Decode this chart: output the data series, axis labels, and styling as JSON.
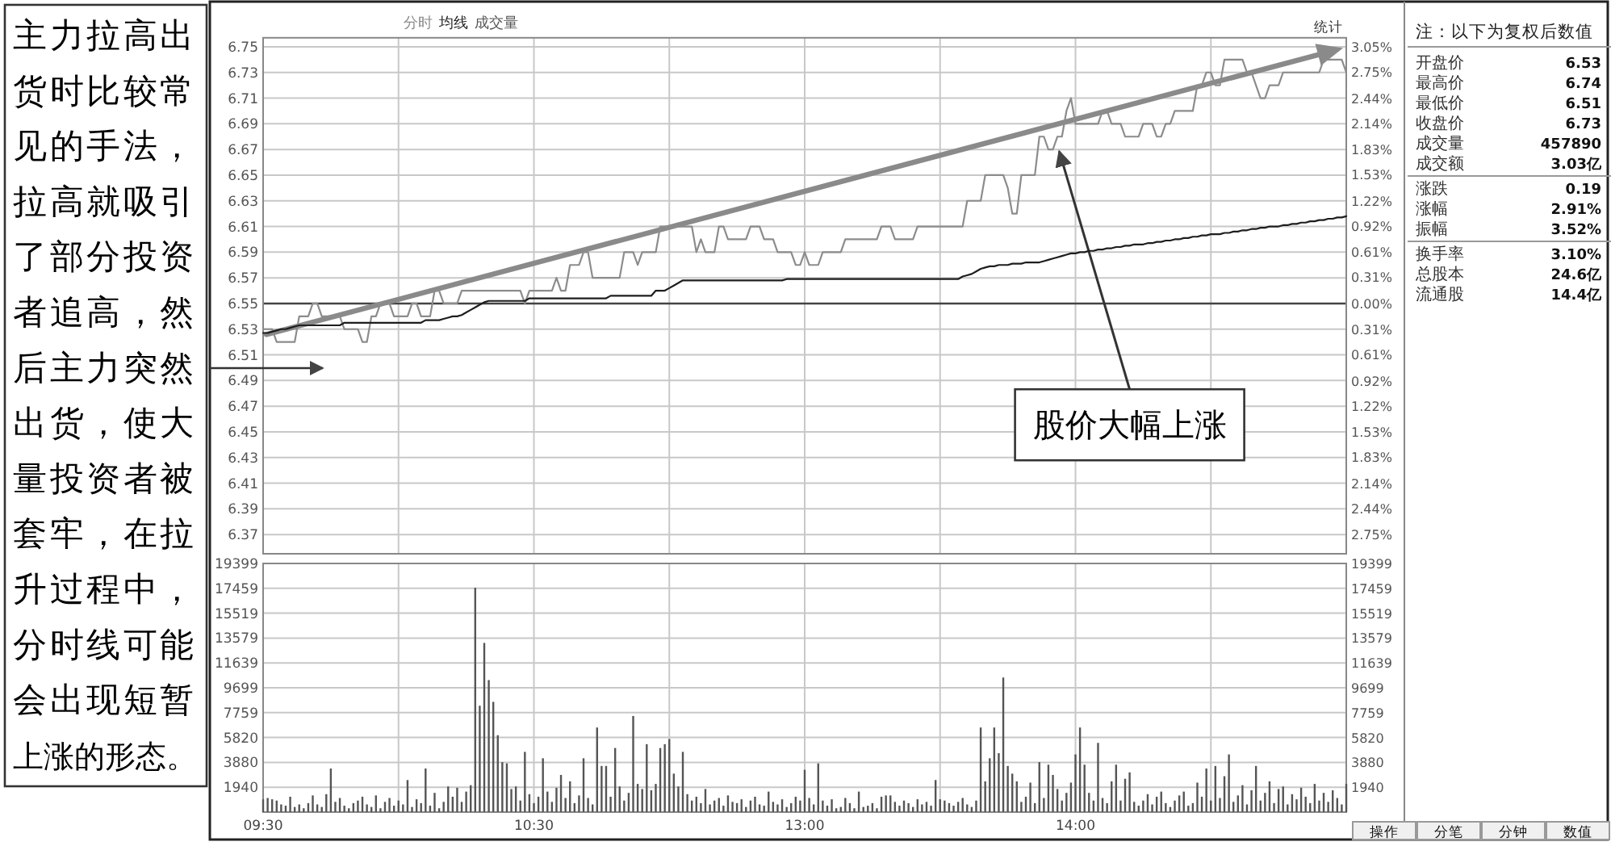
{
  "chart_data": [
    {
      "type": "line",
      "legend": "top left",
      "grid": true,
      "tick_labels": "y",
      "annotations": [
        "主力拉高出货时比较常见的手法，拉高就吸引了部分投资者追高，然后主力突然出货，使大量投资者被套牢，在拉升过程中，分时线可能会出现短暂上涨的形态。",
        "股价大幅上涨",
        "统计"
      ],
      "categories": [
        null,
        null,
        null,
        null,
        null,
        null,
        null,
        null,
        null,
        null,
        null,
        null,
        null,
        null,
        null,
        null,
        null,
        null,
        null,
        null,
        null,
        null,
        null,
        null,
        null,
        null,
        null,
        null,
        null,
        null,
        null,
        null,
        null,
        null,
        null,
        null,
        null,
        null,
        null,
        null,
        null,
        null,
        null,
        null,
        null,
        null,
        null,
        null,
        null,
        null,
        null,
        null,
        null,
        null,
        null,
        null,
        null,
        null,
        null,
        null,
        null,
        null,
        null,
        null,
        null,
        null,
        null,
        null,
        null,
        null,
        null,
        null,
        null,
        null,
        null,
        null,
        null,
        null,
        null,
        null,
        null,
        null,
        null,
        null,
        null,
        null,
        null,
        null,
        null,
        null,
        null,
        null,
        null,
        null,
        null,
        null,
        null,
        null,
        null,
        null,
        null,
        null,
        null,
        null,
        null,
        null,
        null,
        null,
        null,
        null,
        null,
        null,
        null,
        null,
        null,
        null,
        null,
        null,
        null,
        null,
        null,
        null,
        null,
        null,
        null,
        null,
        null,
        null,
        null,
        null,
        null,
        null,
        null,
        null,
        null,
        null,
        null,
        null,
        null,
        null,
        null,
        null,
        null,
        null,
        null,
        null,
        null,
        null,
        null,
        null,
        null,
        null,
        null,
        null,
        null,
        null,
        null,
        null,
        null,
        null,
        null,
        null,
        null,
        null,
        null,
        null,
        null,
        null,
        null,
        null,
        null,
        null,
        null,
        null,
        null,
        null,
        null,
        null,
        null,
        null,
        null,
        null,
        null,
        null,
        null,
        null,
        null,
        null,
        null,
        null,
        null,
        null,
        null,
        null,
        null,
        null,
        null,
        null,
        null,
        null,
        null,
        null,
        null,
        null,
        null,
        null,
        null,
        null,
        null,
        null,
        null,
        null,
        null,
        null,
        null,
        null,
        null,
        null,
        null,
        null,
        null,
        null,
        null,
        null,
        null,
        null,
        null,
        null,
        null,
        null,
        null,
        null,
        null,
        null,
        null,
        null,
        null,
        null,
        null,
        null,
        null
      ],
      "ylim": [
        6.355,
        6.757
      ],
      "yticks": [
        6.37,
        6.39,
        6.41,
        6.43,
        6.45,
        6.47,
        6.49,
        6.51,
        6.53,
        6.55,
        6.57,
        6.59,
        6.61,
        6.63,
        6.65,
        6.67,
        6.69,
        6.71,
        6.73,
        6.75
      ],
      "y2lim": [
        -2.98,
        3.16
      ],
      "y2ticks": [
        {
          "value": -2.75,
          "label": "2.75%"
        },
        {
          "value": -2.44,
          "label": "2.44%"
        },
        {
          "value": -2.14,
          "label": "2.14%"
        },
        {
          "value": -1.83,
          "label": "1.83%"
        },
        {
          "value": -1.53,
          "label": "1.53%"
        },
        {
          "value": -1.22,
          "label": "1.22%"
        },
        {
          "value": -0.92,
          "label": "0.92%"
        },
        {
          "value": -0.61,
          "label": "0.61%"
        },
        {
          "value": -0.31,
          "label": "0.31%"
        },
        {
          "value": 0,
          "label": "0.00%"
        },
        {
          "value": 0.31,
          "label": "0.31%"
        },
        {
          "value": 0.61,
          "label": "0.61%"
        },
        {
          "value": 0.92,
          "label": "0.92%"
        },
        {
          "value": 1.22,
          "label": "1.22%"
        },
        {
          "value": 1.53,
          "label": "1.53%"
        },
        {
          "value": 1.83,
          "label": "1.83%"
        },
        {
          "value": 2.14,
          "label": "2.14%"
        },
        {
          "value": 2.44,
          "label": "2.44%"
        },
        {
          "value": 2.75,
          "label": "2.75%"
        },
        {
          "value": 3.05,
          "label": "3.05%"
        }
      ],
      "ref_lines": [
        {
          "axis": "y",
          "value": 6.55,
          "color": "#444444"
        }
      ],
      "series": [
        {
          "name": "分时",
          "color": "#8c8c8c",
          "values": [
            6.53,
            6.53,
            6.53,
            6.52,
            6.52,
            6.52,
            6.52,
            6.52,
            6.54,
            6.54,
            6.54,
            6.55,
            6.55,
            6.54,
            6.54,
            6.54,
            6.54,
            6.54,
            6.53,
            6.53,
            6.53,
            6.53,
            6.52,
            6.52,
            6.54,
            6.54,
            6.55,
            6.55,
            6.55,
            6.54,
            6.54,
            6.54,
            6.54,
            6.55,
            6.55,
            6.54,
            6.54,
            6.54,
            6.56,
            6.56,
            6.55,
            6.55,
            6.55,
            6.55,
            6.56,
            6.56,
            6.56,
            6.56,
            6.56,
            6.56,
            6.56,
            6.56,
            6.56,
            6.56,
            6.56,
            6.56,
            6.56,
            6.56,
            6.55,
            6.56,
            6.56,
            6.56,
            6.56,
            6.56,
            6.56,
            6.57,
            6.56,
            6.56,
            6.58,
            6.58,
            6.58,
            6.59,
            6.59,
            6.57,
            6.57,
            6.57,
            6.57,
            6.57,
            6.57,
            6.57,
            6.59,
            6.59,
            6.59,
            6.58,
            6.59,
            6.59,
            6.59,
            6.59,
            6.61,
            6.61,
            6.61,
            6.61,
            6.61,
            6.61,
            6.61,
            6.61,
            6.59,
            6.6,
            6.59,
            6.59,
            6.59,
            6.61,
            6.61,
            6.6,
            6.6,
            6.6,
            6.6,
            6.6,
            6.61,
            6.61,
            6.61,
            6.6,
            6.6,
            6.6,
            6.59,
            6.59,
            6.59,
            6.59,
            6.58,
            6.58,
            6.59,
            6.58,
            6.58,
            6.58,
            6.59,
            6.59,
            6.59,
            6.59,
            6.59,
            6.6,
            6.6,
            6.6,
            6.6,
            6.6,
            6.6,
            6.6,
            6.6,
            6.61,
            6.61,
            6.61,
            6.6,
            6.6,
            6.6,
            6.6,
            6.6,
            6.61,
            6.61,
            6.61,
            6.61,
            6.61,
            6.61,
            6.61,
            6.61,
            6.61,
            6.61,
            6.61,
            6.63,
            6.63,
            6.63,
            6.63,
            6.65,
            6.65,
            6.65,
            6.65,
            6.65,
            6.64,
            6.62,
            6.62,
            6.65,
            6.65,
            6.65,
            6.65,
            6.68,
            6.68,
            6.67,
            6.67,
            6.68,
            6.68,
            6.7,
            6.71,
            6.69,
            6.69,
            6.69,
            6.69,
            6.69,
            6.69,
            6.7,
            6.7,
            6.69,
            6.69,
            6.69,
            6.68,
            6.68,
            6.68,
            6.68,
            6.69,
            6.69,
            6.69,
            6.68,
            6.68,
            6.69,
            6.69,
            6.7,
            6.7,
            6.7,
            6.7,
            6.7,
            6.72,
            6.72,
            6.73,
            6.73,
            6.72,
            6.72,
            6.74,
            6.74,
            6.74,
            6.74,
            6.74,
            6.73,
            6.73,
            6.72,
            6.71,
            6.71,
            6.72,
            6.72,
            6.72,
            6.73,
            6.73,
            6.73,
            6.73,
            6.73,
            6.73,
            6.73,
            6.73,
            6.73,
            6.74,
            6.74,
            6.74,
            6.74,
            6.74,
            6.73
          ]
        },
        {
          "name": "均线",
          "color": "#1e1e1e",
          "values": [
            6.527,
            6.527,
            6.528,
            6.529,
            6.53,
            6.53,
            6.531,
            6.532,
            6.533,
            6.533,
            6.533,
            6.533,
            6.533,
            6.533,
            6.533,
            6.533,
            6.533,
            6.533,
            6.535,
            6.535,
            6.535,
            6.535,
            6.535,
            6.535,
            6.535,
            6.535,
            6.535,
            6.535,
            6.535,
            6.535,
            6.535,
            6.535,
            6.535,
            6.535,
            6.535,
            6.535,
            6.537,
            6.537,
            6.537,
            6.537,
            6.538,
            6.539,
            6.54,
            6.54,
            6.541,
            6.543,
            6.545,
            6.547,
            6.549,
            6.551,
            6.552,
            6.552,
            6.552,
            6.552,
            6.552,
            6.552,
            6.552,
            6.552,
            6.552,
            6.554,
            6.554,
            6.554,
            6.554,
            6.554,
            6.554,
            6.554,
            6.554,
            6.554,
            6.554,
            6.554,
            6.554,
            6.554,
            6.554,
            6.554,
            6.554,
            6.554,
            6.554,
            6.556,
            6.556,
            6.556,
            6.556,
            6.556,
            6.556,
            6.556,
            6.556,
            6.556,
            6.556,
            6.56,
            6.56,
            6.56,
            6.562,
            6.564,
            6.566,
            6.568,
            6.568,
            6.568,
            6.568,
            6.568,
            6.568,
            6.568,
            6.568,
            6.568,
            6.568,
            6.568,
            6.568,
            6.568,
            6.568,
            6.568,
            6.568,
            6.568,
            6.568,
            6.568,
            6.568,
            6.568,
            6.568,
            6.568,
            6.569,
            6.569,
            6.569,
            6.569,
            6.569,
            6.569,
            6.569,
            6.569,
            6.569,
            6.569,
            6.569,
            6.569,
            6.569,
            6.569,
            6.569,
            6.569,
            6.569,
            6.569,
            6.569,
            6.569,
            6.569,
            6.569,
            6.569,
            6.569,
            6.569,
            6.569,
            6.569,
            6.569,
            6.569,
            6.569,
            6.569,
            6.569,
            6.569,
            6.569,
            6.569,
            6.569,
            6.569,
            6.569,
            6.569,
            6.571,
            6.572,
            6.573,
            6.575,
            6.577,
            6.578,
            6.579,
            6.579,
            6.58,
            6.58,
            6.58,
            6.581,
            6.581,
            6.581,
            6.582,
            6.582,
            6.582,
            6.582,
            6.583,
            6.584,
            6.585,
            6.586,
            6.587,
            6.588,
            6.589,
            6.589,
            6.59,
            6.59,
            6.591,
            6.591,
            6.592,
            6.592,
            6.593,
            6.593,
            6.594,
            6.594,
            6.595,
            6.595,
            6.596,
            6.596,
            6.596,
            6.597,
            6.597,
            6.598,
            6.598,
            6.599,
            6.599,
            6.6,
            6.6,
            6.601,
            6.601,
            6.602,
            6.602,
            6.603,
            6.603,
            6.604,
            6.604,
            6.604,
            6.605,
            6.605,
            6.606,
            6.606,
            6.607,
            6.607,
            6.608,
            6.608,
            6.609,
            6.609,
            6.61,
            6.61,
            6.61,
            6.611,
            6.611,
            6.612,
            6.612,
            6.613,
            6.613,
            6.614,
            6.614,
            6.615,
            6.615,
            6.616,
            6.616,
            6.617,
            6.617,
            6.618
          ]
        }
      ]
    },
    {
      "type": "bar",
      "legend": "top left",
      "grid": true,
      "categories": [
        "09:30",
        null,
        null,
        null,
        null,
        null,
        null,
        null,
        null,
        null,
        null,
        null,
        null,
        null,
        null,
        null,
        null,
        null,
        null,
        null,
        null,
        null,
        null,
        null,
        null,
        null,
        null,
        null,
        null,
        null,
        null,
        null,
        null,
        null,
        null,
        null,
        null,
        null,
        null,
        null,
        null,
        null,
        null,
        null,
        null,
        null,
        null,
        null,
        null,
        null,
        null,
        null,
        null,
        null,
        null,
        null,
        null,
        null,
        null,
        null,
        "10:30",
        null,
        null,
        null,
        null,
        null,
        null,
        null,
        null,
        null,
        null,
        null,
        null,
        null,
        null,
        null,
        null,
        null,
        null,
        null,
        null,
        null,
        null,
        null,
        null,
        null,
        null,
        null,
        null,
        null,
        null,
        null,
        null,
        null,
        null,
        null,
        null,
        null,
        null,
        null,
        null,
        null,
        null,
        null,
        null,
        null,
        null,
        null,
        null,
        null,
        null,
        null,
        null,
        null,
        null,
        null,
        null,
        null,
        null,
        null,
        "13:00",
        null,
        null,
        null,
        null,
        null,
        null,
        null,
        null,
        null,
        null,
        null,
        null,
        null,
        null,
        null,
        null,
        null,
        null,
        null,
        null,
        null,
        null,
        null,
        null,
        null,
        null,
        null,
        null,
        null,
        null,
        null,
        null,
        null,
        null,
        null,
        null,
        null,
        null,
        null,
        null,
        null,
        null,
        null,
        null,
        null,
        null,
        null,
        null,
        null,
        null,
        null,
        null,
        null,
        null,
        null,
        null,
        null,
        null,
        null,
        "14:00",
        null,
        null,
        null,
        null,
        null,
        null,
        null,
        null,
        null,
        null,
        null,
        null,
        null,
        null,
        null,
        null,
        null,
        null,
        null,
        null,
        null,
        null,
        null,
        null,
        null,
        null,
        null,
        null,
        null,
        null,
        null,
        null,
        null,
        null,
        null,
        null,
        null,
        null,
        null,
        null,
        null,
        null,
        null,
        null,
        null,
        null,
        null,
        null,
        null,
        null,
        null,
        null,
        null,
        null,
        null,
        null,
        null,
        null,
        null,
        null
      ],
      "ylim": [
        0,
        19399
      ],
      "yticks": [
        1940,
        3880,
        5820,
        7759,
        9699,
        11639,
        13579,
        15519,
        17459,
        19399
      ],
      "y2lim": [
        0,
        19399
      ],
      "y2ticks": [
        1940,
        3880,
        5820,
        7759,
        9699,
        11639,
        13579,
        15519,
        17459,
        19399
      ],
      "series": [
        {
          "name": "成交量",
          "color": "#555555",
          "values": [
            1000,
            1100,
            1000,
            900,
            600,
            500,
            1200,
            400,
            600,
            300,
            700,
            1300,
            600,
            400,
            1400,
            3400,
            800,
            1100,
            500,
            300,
            700,
            900,
            1200,
            600,
            400,
            1300,
            300,
            800,
            1100,
            500,
            900,
            600,
            2500,
            400,
            1000,
            700,
            3400,
            500,
            1500,
            300,
            800,
            2000,
            1200,
            1900,
            800,
            1600,
            2100,
            17500,
            8300,
            13200,
            10300,
            8600,
            6000,
            3900,
            3800,
            1800,
            2000,
            900,
            4700,
            1400,
            700,
            1200,
            4200,
            1600,
            800,
            1900,
            2900,
            1100,
            2400,
            700,
            1300,
            4200,
            1100,
            600,
            6600,
            3600,
            3600,
            1200,
            5000,
            2000,
            900,
            1500,
            7500,
            2200,
            1800,
            5300,
            1700,
            2200,
            5000,
            5300,
            5700,
            3000,
            2000,
            4700,
            1400,
            900,
            1200,
            700,
            1800,
            600,
            900,
            1100,
            500,
            1300,
            800,
            700,
            1000,
            400,
            900,
            1200,
            600,
            500,
            1600,
            800,
            600,
            1000,
            400,
            700,
            1200,
            900,
            3300,
            1100,
            600,
            3800,
            900,
            500,
            1000,
            300,
            400,
            1100,
            700,
            300,
            1600,
            400,
            500,
            700,
            300,
            1200,
            1300,
            1300,
            800,
            500,
            900,
            700,
            400,
            1000,
            600,
            800,
            500,
            2500,
            1000,
            900,
            700,
            500,
            800,
            1100,
            600,
            400,
            900,
            6600,
            2400,
            4200,
            6600,
            4600,
            10500,
            3600,
            3000,
            2400,
            800,
            1200,
            2300,
            700,
            3900,
            1100,
            3700,
            2900,
            1800,
            900,
            1500,
            2300,
            4500,
            6600,
            3700,
            1500,
            900,
            5400,
            1100,
            700,
            2400,
            3700,
            900,
            2600,
            3100,
            800,
            500,
            900,
            1400,
            600,
            1200,
            1600,
            700,
            400,
            900,
            1300,
            1600,
            500,
            700,
            2300,
            1200,
            3400,
            900,
            3600,
            1100,
            2800,
            4500,
            800,
            1300,
            2100,
            600,
            1700,
            3600,
            900,
            1500,
            2400,
            700,
            1800,
            2000,
            600,
            1400,
            1000,
            1900,
            1200,
            700,
            2200,
            900,
            1500,
            800,
            1700,
            1100,
            600,
            2200
          ]
        }
      ]
    },
    {
      "type": "other",
      "title": "注：以下为复权后数值",
      "categories": [
        "开盘价",
        "最高价",
        "最低价",
        "收盘价",
        "成交量",
        "成交额",
        "涨跌",
        "涨幅",
        "振幅",
        "换手率",
        "总股本",
        "流通股"
      ],
      "value_labels": [
        "6.53",
        "6.74",
        "6.51",
        "6.73",
        "457890",
        "3.03亿",
        "0.19",
        "2.91%",
        "3.52%",
        "3.10%",
        "24.6亿",
        "14.4亿"
      ],
      "annotations": [
        "操作",
        "分笔",
        "分钟",
        "数值"
      ]
    }
  ]
}
